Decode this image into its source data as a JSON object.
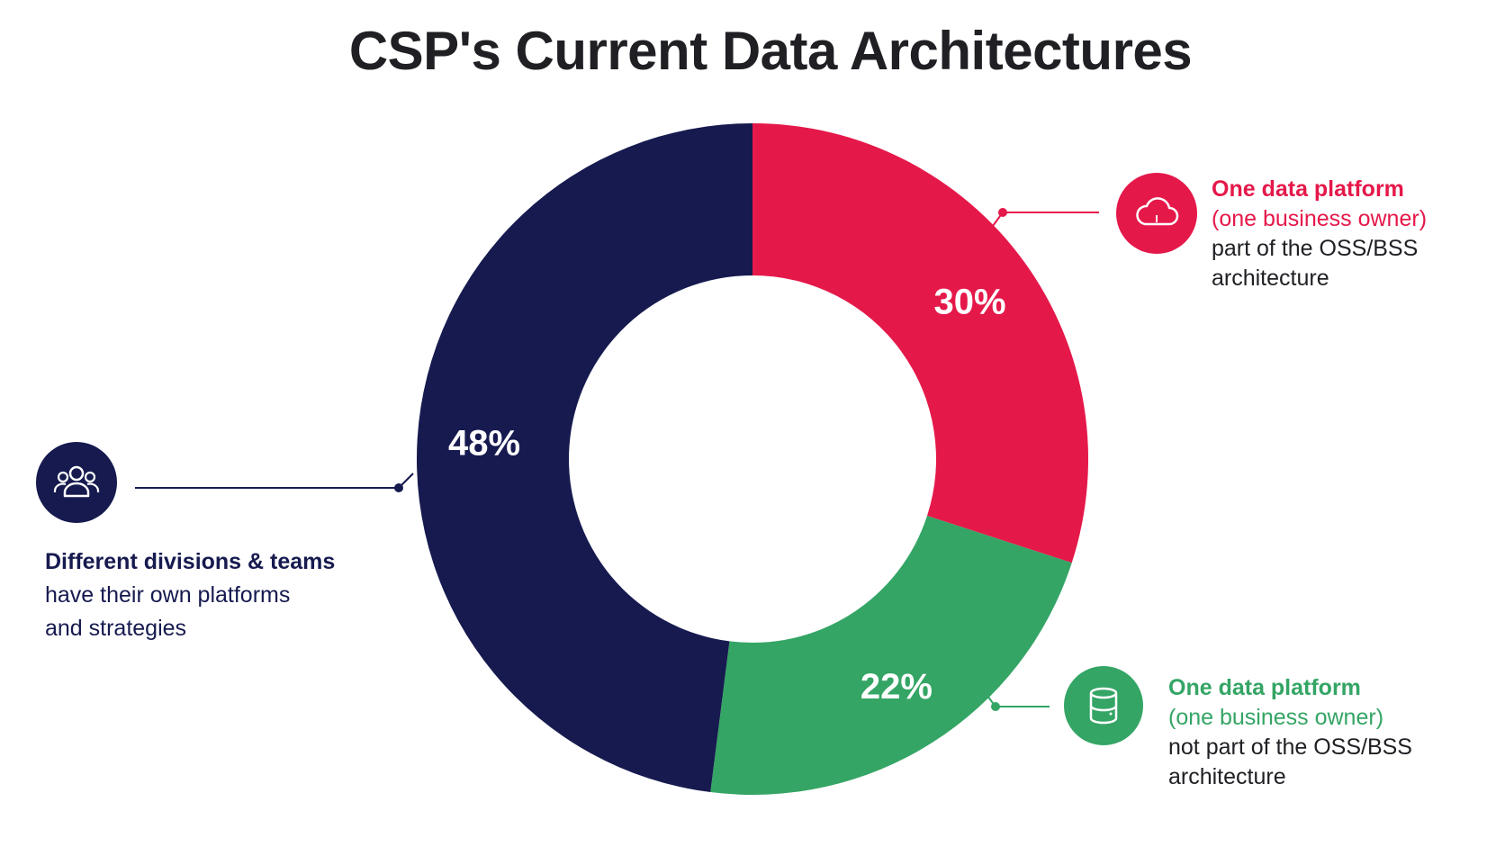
{
  "title": "CSP's Current Data Architectures",
  "colors": {
    "red": "#e5184a",
    "green": "#34a565",
    "navy": "#161a4f"
  },
  "chart_data": {
    "type": "pie",
    "title": "CSP's Current Data Architectures",
    "donut": true,
    "unit": "%",
    "slices": [
      {
        "label": "One data platform (one business owner) part of the OSS/BSS architecture",
        "value": 30,
        "display": "30%",
        "color": "#e5184a"
      },
      {
        "label": "One data platform (one business owner) not part of the OSS/BSS architecture",
        "value": 22,
        "display": "22%",
        "color": "#34a565"
      },
      {
        "label": "Different divisions & teams have their own platforms and strategies",
        "value": 48,
        "display": "48%",
        "color": "#161a4f"
      }
    ]
  },
  "callouts": {
    "red": {
      "icon": "cloud-icon",
      "head": "One data platform",
      "sub": "(one business owner)",
      "lines": [
        "part of the OSS/BSS",
        "architecture"
      ]
    },
    "green": {
      "icon": "database-icon",
      "head": "One data platform",
      "sub": "(one business owner)",
      "lines": [
        "not part of the OSS/BSS",
        "architecture"
      ]
    },
    "navy": {
      "icon": "users-icon",
      "head": "Different divisions & teams",
      "lines": [
        "have their own platforms",
        "and strategies"
      ]
    }
  }
}
